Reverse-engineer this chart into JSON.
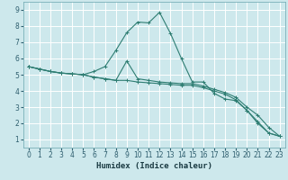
{
  "xlabel": "Humidex (Indice chaleur)",
  "bg_color": "#cde8ec",
  "grid_color": "#b8d8dc",
  "line_color": "#2e7d72",
  "xlim": [
    -0.5,
    23.5
  ],
  "ylim": [
    0.5,
    9.5
  ],
  "xticks": [
    0,
    1,
    2,
    3,
    4,
    5,
    6,
    7,
    8,
    9,
    10,
    11,
    12,
    13,
    14,
    15,
    16,
    17,
    18,
    19,
    20,
    21,
    22,
    23
  ],
  "yticks": [
    1,
    2,
    3,
    4,
    5,
    6,
    7,
    8,
    9
  ],
  "lines": [
    {
      "x": [
        0,
        1,
        2,
        3,
        4,
        5,
        6,
        7,
        8,
        9,
        10,
        11,
        12,
        13,
        14,
        15,
        16,
        17,
        18,
        19,
        20,
        21,
        22,
        23
      ],
      "y": [
        5.5,
        5.35,
        5.2,
        5.1,
        5.05,
        5.0,
        4.85,
        4.75,
        4.65,
        4.65,
        4.55,
        4.5,
        4.45,
        4.4,
        4.35,
        4.35,
        4.2,
        4.0,
        3.8,
        3.45,
        2.8,
        2.1,
        1.4,
        1.2
      ]
    },
    {
      "x": [
        0,
        1,
        2,
        3,
        4,
        5,
        6,
        7,
        8,
        9,
        10,
        11,
        12,
        13,
        14,
        15,
        16,
        17,
        18,
        19,
        20,
        21,
        22,
        23
      ],
      "y": [
        5.5,
        5.35,
        5.2,
        5.1,
        5.05,
        5.0,
        4.85,
        4.75,
        4.65,
        5.85,
        4.75,
        4.65,
        4.55,
        4.5,
        4.45,
        4.45,
        4.3,
        4.1,
        3.9,
        3.6,
        3.0,
        2.5,
        1.75,
        1.2
      ]
    },
    {
      "x": [
        0,
        1,
        2,
        3,
        4,
        5,
        6,
        7,
        8,
        9,
        10,
        11,
        12,
        13,
        14,
        15,
        16,
        17,
        18,
        19,
        20,
        21,
        22,
        23
      ],
      "y": [
        5.5,
        5.35,
        5.2,
        5.1,
        5.05,
        5.0,
        5.2,
        5.5,
        6.5,
        7.6,
        8.25,
        8.2,
        8.85,
        7.55,
        6.0,
        4.55,
        4.55,
        3.85,
        3.5,
        3.4,
        2.8,
        2.0,
        1.4,
        1.2
      ]
    }
  ]
}
